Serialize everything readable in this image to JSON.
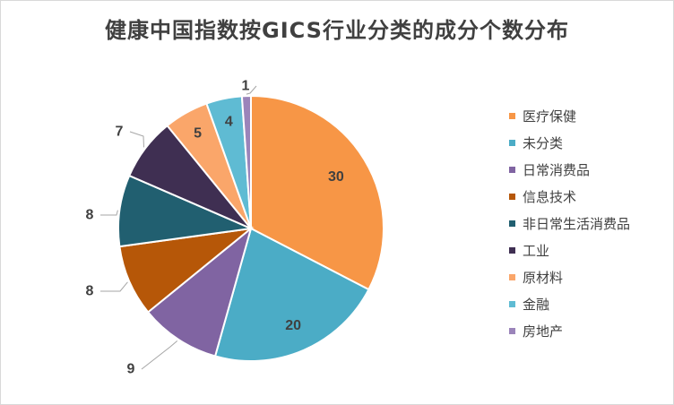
{
  "chart_data": {
    "type": "pie",
    "title": "健康中国指数按GICS行业分类的成分个数分布",
    "legend_position": "right",
    "slices": [
      {
        "name": "医疗保健",
        "value": 30,
        "color": "#F79646"
      },
      {
        "name": "未分类",
        "value": 20,
        "color": "#4BACC6"
      },
      {
        "name": "日常消费品",
        "value": 9,
        "color": "#8064A2"
      },
      {
        "name": "信息技术",
        "value": 8,
        "color": "#B65708"
      },
      {
        "name": "非日常生活消费品",
        "value": 8,
        "color": "#215F70"
      },
      {
        "name": "工业",
        "value": 7,
        "color": "#3F2F52"
      },
      {
        "name": "原材料",
        "value": 5,
        "color": "#FAA66A"
      },
      {
        "name": "金融",
        "value": 4,
        "color": "#5FBBD3"
      },
      {
        "name": "房地产",
        "value": 1,
        "color": "#9B84BA"
      }
    ]
  }
}
